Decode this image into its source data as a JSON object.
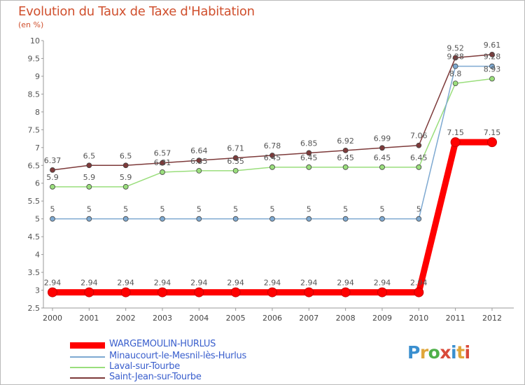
{
  "title": "Evolution du Taux de Taxe d'Habitation",
  "subtitle": "(en %)",
  "logo_text": "Proxiti",
  "chart_data": {
    "type": "line",
    "x": [
      "2000",
      "2001",
      "2002",
      "2003",
      "2004",
      "2005",
      "2006",
      "2007",
      "2008",
      "2009",
      "2010",
      "2011",
      "2012"
    ],
    "ylim": [
      2.5,
      10
    ],
    "yticks": [
      "2.5",
      "3",
      "3.5",
      "4",
      "4.5",
      "5",
      "5.5",
      "6",
      "6.5",
      "7",
      "7.5",
      "8",
      "8.5",
      "9",
      "9.5",
      "10"
    ],
    "grid": false,
    "legend_position": "bottom-left",
    "series": [
      {
        "name": "WARGEMOULIN-HURLUS",
        "color": "#ff0000",
        "values": [
          2.94,
          2.94,
          2.94,
          2.94,
          2.94,
          2.94,
          2.94,
          2.94,
          2.94,
          2.94,
          2.94,
          7.15,
          7.15
        ],
        "labels": [
          "2.94",
          "2.94",
          "2.94",
          "2.94",
          "2.94",
          "2.94",
          "2.94",
          "2.94",
          "2.94",
          "2.94",
          "2.94",
          "7.15",
          "7.15"
        ]
      },
      {
        "name": "Minaucourt-le-Mesnil-lès-Hurlus",
        "color": "#7ea9d1",
        "values": [
          5,
          5,
          5,
          5,
          5,
          5,
          5,
          5,
          5,
          5,
          5,
          9.28,
          9.28
        ],
        "labels": [
          "5",
          "5",
          "5",
          "5",
          "5",
          "5",
          "5",
          "5",
          "5",
          "5",
          "5",
          "9.28",
          "9.28"
        ]
      },
      {
        "name": "Laval-sur-Tourbe",
        "color": "#9ade7c",
        "values": [
          5.9,
          5.9,
          5.9,
          6.31,
          6.35,
          6.35,
          6.45,
          6.45,
          6.45,
          6.45,
          6.45,
          8.8,
          8.93
        ],
        "labels": [
          "5.9",
          "5.9",
          "5.9",
          "6.31",
          "6.35",
          "6.35",
          "6.45",
          "6.45",
          "6.45",
          "6.45",
          "6.45",
          "8.8",
          "8.93"
        ]
      },
      {
        "name": "Saint-Jean-sur-Tourbe",
        "color": "#7d3a3a",
        "values": [
          6.37,
          6.5,
          6.5,
          6.57,
          6.64,
          6.71,
          6.78,
          6.85,
          6.92,
          6.99,
          7.06,
          9.52,
          9.61
        ],
        "labels": [
          "6.37",
          "6.5",
          "6.5",
          "6.57",
          "6.64",
          "6.71",
          "6.78",
          "6.85",
          "6.92",
          "6.99",
          "7.06",
          "9.52",
          "9.61"
        ]
      }
    ]
  }
}
